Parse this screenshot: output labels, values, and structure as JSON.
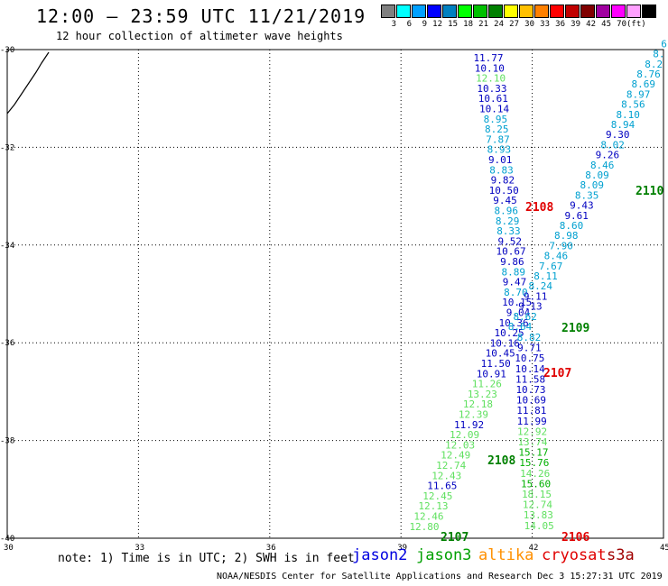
{
  "title": "12:00 – 23:59 UTC 11/21/2019",
  "subtitle": "12 hour collection of altimeter wave heights",
  "legend": {
    "colors": [
      "#808080",
      "#00ffff",
      "#00a0ff",
      "#0000ff",
      "#0080c0",
      "#00ff00",
      "#00c000",
      "#008000",
      "#ffff00",
      "#ffc000",
      "#ff8000",
      "#ff0000",
      "#c00000",
      "#800000",
      "#a000a0",
      "#ff00ff",
      "#ffa0ff",
      "#000000"
    ],
    "labels": [
      "3",
      "6",
      "9",
      "12",
      "15",
      "18",
      "21",
      "24",
      "27",
      "30",
      "33",
      "36",
      "39",
      "42",
      "45",
      "70",
      "(ft)"
    ]
  },
  "map": {
    "lat_range": [
      -40,
      -30
    ],
    "lon_range": [
      30,
      45
    ],
    "lat_ticks": [
      "-30",
      "-32",
      "-34",
      "-36",
      "-38",
      "-40"
    ],
    "lon_ticks": [
      "30",
      "33",
      "36",
      "39",
      "42",
      "45"
    ]
  },
  "tracks": [
    {
      "satellite": "jason2",
      "points": [
        {
          "v": "11.77",
          "c": "#0000c0"
        },
        {
          "v": "10.10",
          "c": "#0000c0"
        },
        {
          "v": "12.10",
          "c": "#60e060"
        },
        {
          "v": "10.33",
          "c": "#0000c0"
        },
        {
          "v": "10.61",
          "c": "#0000c0"
        },
        {
          "v": "10.14",
          "c": "#0000c0"
        },
        {
          "v": "8.95",
          "c": "#00a0d0"
        },
        {
          "v": "8.25",
          "c": "#00a0d0"
        },
        {
          "v": "7.87",
          "c": "#00a0d0"
        },
        {
          "v": "8.93",
          "c": "#00a0d0"
        },
        {
          "v": "9.01",
          "c": "#0000c0"
        },
        {
          "v": "8.83",
          "c": "#00a0d0"
        },
        {
          "v": "9.82",
          "c": "#0000c0"
        },
        {
          "v": "10.50",
          "c": "#0000c0"
        },
        {
          "v": "9.45",
          "c": "#0000c0"
        },
        {
          "v": "8.96",
          "c": "#00a0d0"
        },
        {
          "v": "8.29",
          "c": "#00a0d0"
        },
        {
          "v": "8.33",
          "c": "#00a0d0"
        },
        {
          "v": "9.52",
          "c": "#0000c0"
        },
        {
          "v": "10.67",
          "c": "#0000c0"
        },
        {
          "v": "9.86",
          "c": "#0000c0"
        },
        {
          "v": "8.89",
          "c": "#00a0d0"
        },
        {
          "v": "9.47",
          "c": "#0000c0"
        },
        {
          "v": "8.70",
          "c": "#00a0d0"
        },
        {
          "v": "10.15",
          "c": "#0000c0"
        },
        {
          "v": "9.04",
          "c": "#0000c0"
        },
        {
          "v": "10.36",
          "c": "#0000c0"
        },
        {
          "v": "10.25",
          "c": "#0000c0"
        },
        {
          "v": "10.16",
          "c": "#0000c0"
        },
        {
          "v": "10.45",
          "c": "#0000c0"
        },
        {
          "v": "11.50",
          "c": "#0000c0"
        },
        {
          "v": "10.91",
          "c": "#0000c0"
        },
        {
          "v": "11.26",
          "c": "#60e060"
        },
        {
          "v": "13.23",
          "c": "#60e060"
        },
        {
          "v": "12.18",
          "c": "#60e060"
        },
        {
          "v": "12.39",
          "c": "#60e060"
        },
        {
          "v": "11.92",
          "c": "#0000c0"
        },
        {
          "v": "12.09",
          "c": "#60e060"
        },
        {
          "v": "12.03",
          "c": "#60e060"
        },
        {
          "v": "12.49",
          "c": "#60e060"
        },
        {
          "v": "12.74",
          "c": "#60e060"
        },
        {
          "v": "12.43",
          "c": "#60e060"
        },
        {
          "v": "11.65",
          "c": "#0000c0"
        },
        {
          "v": "12.45",
          "c": "#60e060"
        },
        {
          "v": "12.13",
          "c": "#60e060"
        },
        {
          "v": "12.46",
          "c": "#60e060"
        },
        {
          "v": "12.80",
          "c": "#60e060"
        }
      ]
    },
    {
      "satellite": "jason3",
      "points": [
        {
          "v": "8.82",
          "c": "#00a0d0"
        },
        {
          "v": "9.71",
          "c": "#0000c0"
        },
        {
          "v": "10.75",
          "c": "#0000c0"
        },
        {
          "v": "10.14",
          "c": "#0000c0"
        },
        {
          "v": "11.58",
          "c": "#0000c0"
        },
        {
          "v": "10.73",
          "c": "#0000c0"
        },
        {
          "v": "10.69",
          "c": "#0000c0"
        },
        {
          "v": "11.81",
          "c": "#0000c0"
        },
        {
          "v": "11.99",
          "c": "#0000c0"
        },
        {
          "v": "12.92",
          "c": "#60e060"
        },
        {
          "v": "13.74",
          "c": "#60e060"
        },
        {
          "v": "15.17",
          "c": "#00b000"
        },
        {
          "v": "15.76",
          "c": "#00b000"
        },
        {
          "v": "14.26",
          "c": "#60e060"
        },
        {
          "v": "15.60",
          "c": "#00b000"
        },
        {
          "v": "18.15",
          "c": "#60e060"
        },
        {
          "v": "12.74",
          "c": "#60e060"
        },
        {
          "v": "13.83",
          "c": "#60e060"
        },
        {
          "v": "14.05",
          "c": "#60e060"
        }
      ]
    },
    {
      "satellite": "altika",
      "points": [
        {
          "v": "8.64",
          "c": "#00a0d0"
        },
        {
          "v": "8.62",
          "c": "#00a0d0"
        },
        {
          "v": "9.13",
          "c": "#0000c0"
        },
        {
          "v": "9.11",
          "c": "#0000c0"
        },
        {
          "v": "8.24",
          "c": "#00a0d0"
        },
        {
          "v": "8.11",
          "c": "#00a0d0"
        },
        {
          "v": "7.67",
          "c": "#00a0d0"
        },
        {
          "v": "8.46",
          "c": "#00a0d0"
        },
        {
          "v": "7.90",
          "c": "#00a0d0"
        },
        {
          "v": "8.98",
          "c": "#00a0d0"
        },
        {
          "v": "8.60",
          "c": "#00a0d0"
        },
        {
          "v": "9.61",
          "c": "#0000c0"
        },
        {
          "v": "9.43",
          "c": "#0000c0"
        },
        {
          "v": "8.35",
          "c": "#00a0d0"
        },
        {
          "v": "8.09",
          "c": "#00a0d0"
        },
        {
          "v": "8.09",
          "c": "#00a0d0"
        },
        {
          "v": "8.46",
          "c": "#00a0d0"
        },
        {
          "v": "9.26",
          "c": "#0000c0"
        },
        {
          "v": "8.02",
          "c": "#00a0d0"
        },
        {
          "v": "9.30",
          "c": "#0000c0"
        },
        {
          "v": "8.94",
          "c": "#00a0d0"
        },
        {
          "v": "8.10",
          "c": "#00a0d0"
        },
        {
          "v": "8.56",
          "c": "#00a0d0"
        },
        {
          "v": "8.97",
          "c": "#00a0d0"
        },
        {
          "v": "8.69",
          "c": "#00a0d0"
        },
        {
          "v": "8.76",
          "c": "#00a0d0"
        },
        {
          "v": "8.2",
          "c": "#00a0d0"
        },
        {
          "v": "8.",
          "c": "#00a0d0"
        },
        {
          "v": "6",
          "c": "#00a0d0"
        }
      ]
    }
  ],
  "time_labels": [
    {
      "text": "2108",
      "color": "#e00000"
    },
    {
      "text": "2110",
      "color": "#008000"
    },
    {
      "text": "2109",
      "color": "#008000"
    },
    {
      "text": "2107",
      "color": "#e00000"
    },
    {
      "text": "2108",
      "color": "#008000"
    },
    {
      "text": "2107",
      "color": "#008000"
    },
    {
      "text": "2106",
      "color": "#e00000"
    }
  ],
  "note": "note: 1) Time is in UTC; 2) SWH is in feet",
  "satellites": [
    {
      "name": "jason2",
      "color": "#0000e0"
    },
    {
      "name": "jason3",
      "color": "#00a000"
    },
    {
      "name": "altika",
      "color": "#ff9000"
    },
    {
      "name": "cryosat",
      "color": "#e00000"
    },
    {
      "name": "s3a",
      "color": "#a00000"
    }
  ],
  "credit": "NOAA/NESDIS Center for Satellite Applications and Research   Dec  3 15:27:31 UTC 2019"
}
